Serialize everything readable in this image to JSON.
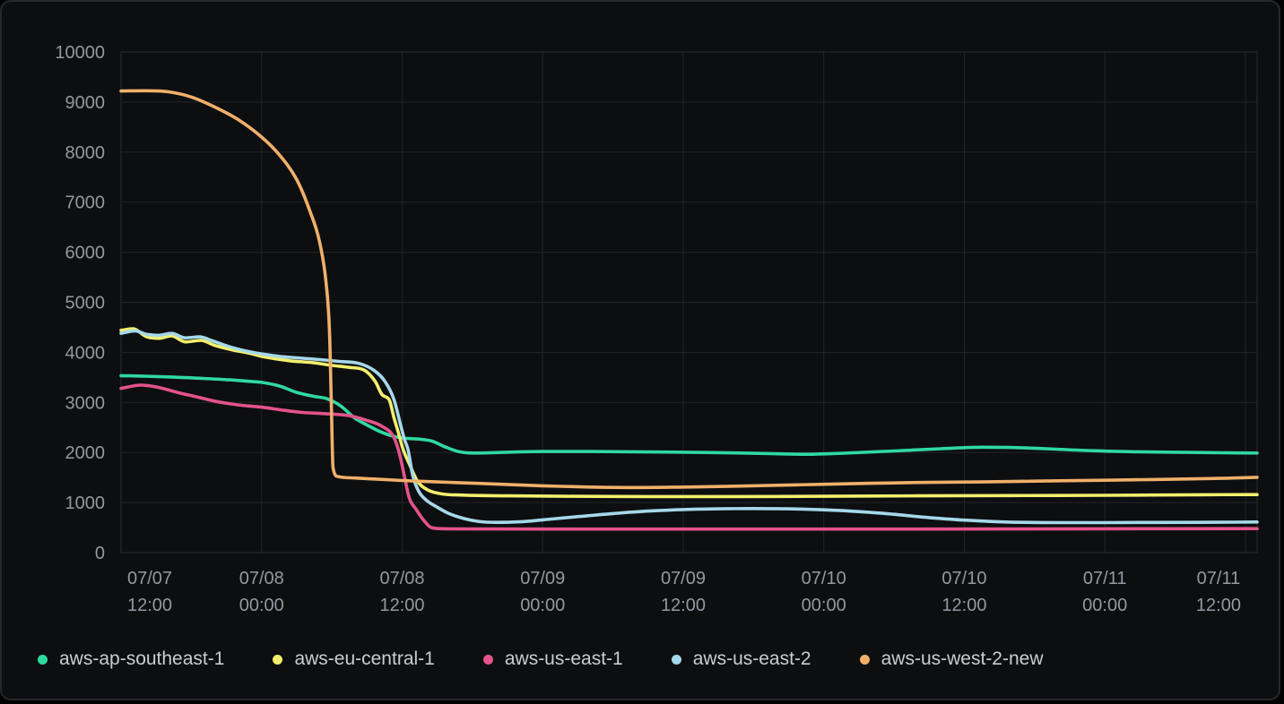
{
  "panel": {
    "background": "#0d0e10",
    "border_color": "#26282c",
    "grid_color": "#222529",
    "plot_border_color": "#2a2c30",
    "axis_text_color": "#95989f",
    "legend_text_color": "#c9ccd2"
  },
  "chart_data": {
    "type": "line",
    "title": "",
    "xlabel": "",
    "ylabel": "",
    "grid": true,
    "legend_position": "bottom",
    "ylim": [
      0,
      10000
    ],
    "y_ticks": [
      0,
      1000,
      2000,
      3000,
      4000,
      5000,
      6000,
      7000,
      8000,
      9000,
      10000
    ],
    "x_range_hours": [
      0,
      97
    ],
    "x_tick_hours": [
      0,
      12,
      24,
      36,
      48,
      60,
      72,
      84,
      96
    ],
    "x_tick_labels": [
      {
        "date": "07/07",
        "time": "12:00"
      },
      {
        "date": "07/08",
        "time": "00:00"
      },
      {
        "date": "07/08",
        "time": "12:00"
      },
      {
        "date": "07/09",
        "time": "00:00"
      },
      {
        "date": "07/09",
        "time": "12:00"
      },
      {
        "date": "07/10",
        "time": "00:00"
      },
      {
        "date": "07/10",
        "time": "12:00"
      },
      {
        "date": "07/11",
        "time": "00:00"
      },
      {
        "date": "07/11",
        "time": "12:00"
      }
    ],
    "series": [
      {
        "name": "aws-ap-southeast-1",
        "color": "#2fd9a0",
        "points": [
          [
            0,
            3535
          ],
          [
            2,
            3525
          ],
          [
            4,
            3510
          ],
          [
            7,
            3480
          ],
          [
            9,
            3455
          ],
          [
            11,
            3420
          ],
          [
            12,
            3400
          ],
          [
            13.5,
            3330
          ],
          [
            15,
            3200
          ],
          [
            16.5,
            3120
          ],
          [
            17.5,
            3080
          ],
          [
            18.7,
            2940
          ],
          [
            20,
            2680
          ],
          [
            21,
            2550
          ],
          [
            22,
            2430
          ],
          [
            23,
            2340
          ],
          [
            24,
            2290
          ],
          [
            25.3,
            2270
          ],
          [
            26.5,
            2230
          ],
          [
            27.7,
            2110
          ],
          [
            28.8,
            2020
          ],
          [
            30,
            1990
          ],
          [
            33,
            2005
          ],
          [
            36,
            2020
          ],
          [
            40,
            2020
          ],
          [
            45,
            2010
          ],
          [
            50,
            2000
          ],
          [
            55,
            1980
          ],
          [
            58.5,
            1965
          ],
          [
            62,
            1990
          ],
          [
            66,
            2030
          ],
          [
            70,
            2075
          ],
          [
            73.5,
            2105
          ],
          [
            76,
            2100
          ],
          [
            79,
            2075
          ],
          [
            83,
            2035
          ],
          [
            86.5,
            2015
          ],
          [
            90,
            2005
          ],
          [
            94,
            1995
          ],
          [
            97,
            1990
          ]
        ]
      },
      {
        "name": "aws-eu-central-1",
        "color": "#f3ef6d",
        "points": [
          [
            0,
            4440
          ],
          [
            1,
            4470
          ],
          [
            2.2,
            4310
          ],
          [
            3.2,
            4280
          ],
          [
            4.3,
            4330
          ],
          [
            5.5,
            4210
          ],
          [
            6.8,
            4240
          ],
          [
            8,
            4140
          ],
          [
            9.7,
            4040
          ],
          [
            11,
            3980
          ],
          [
            12,
            3920
          ],
          [
            13.5,
            3860
          ],
          [
            14.5,
            3830
          ],
          [
            16.5,
            3790
          ],
          [
            18,
            3740
          ],
          [
            19.5,
            3700
          ],
          [
            20.8,
            3640
          ],
          [
            21.7,
            3420
          ],
          [
            22.3,
            3150
          ],
          [
            22.9,
            3050
          ],
          [
            23.3,
            2700
          ],
          [
            23.7,
            2380
          ],
          [
            24.1,
            2050
          ],
          [
            24.6,
            1780
          ],
          [
            25.3,
            1430
          ],
          [
            26.2,
            1250
          ],
          [
            27.5,
            1170
          ],
          [
            29,
            1150
          ],
          [
            33,
            1135
          ],
          [
            38,
            1125
          ],
          [
            45,
            1120
          ],
          [
            52,
            1120
          ],
          [
            60,
            1125
          ],
          [
            68,
            1135
          ],
          [
            76,
            1140
          ],
          [
            84,
            1145
          ],
          [
            92,
            1155
          ],
          [
            97,
            1160
          ]
        ]
      },
      {
        "name": "aws-us-east-1",
        "color": "#e4538b",
        "points": [
          [
            0,
            3280
          ],
          [
            1.7,
            3345
          ],
          [
            3,
            3310
          ],
          [
            5,
            3190
          ],
          [
            6.5,
            3110
          ],
          [
            8.1,
            3020
          ],
          [
            10,
            2950
          ],
          [
            12,
            2905
          ],
          [
            14,
            2840
          ],
          [
            15.5,
            2800
          ],
          [
            17.5,
            2775
          ],
          [
            19.5,
            2735
          ],
          [
            21,
            2640
          ],
          [
            22.3,
            2520
          ],
          [
            23.3,
            2300
          ],
          [
            23.8,
            1950
          ],
          [
            24.2,
            1520
          ],
          [
            24.6,
            1100
          ],
          [
            25.2,
            860
          ],
          [
            25.9,
            630
          ],
          [
            26.5,
            500
          ],
          [
            27.5,
            478
          ],
          [
            32,
            473
          ],
          [
            45,
            470
          ],
          [
            60,
            470
          ],
          [
            75,
            473
          ],
          [
            90,
            477
          ],
          [
            97,
            480
          ]
        ]
      },
      {
        "name": "aws-us-east-2",
        "color": "#a5d8ea",
        "points": [
          [
            0,
            4380
          ],
          [
            1.2,
            4430
          ],
          [
            2.2,
            4360
          ],
          [
            3.2,
            4340
          ],
          [
            4.3,
            4380
          ],
          [
            5.5,
            4290
          ],
          [
            6.7,
            4310
          ],
          [
            7.8,
            4230
          ],
          [
            9.3,
            4110
          ],
          [
            11,
            4010
          ],
          [
            12,
            3970
          ],
          [
            13.5,
            3920
          ],
          [
            15,
            3890
          ],
          [
            17,
            3855
          ],
          [
            18.6,
            3820
          ],
          [
            20.3,
            3780
          ],
          [
            21.6,
            3640
          ],
          [
            22.5,
            3430
          ],
          [
            23.3,
            3060
          ],
          [
            23.9,
            2520
          ],
          [
            24.2,
            2260
          ],
          [
            24.5,
            2060
          ],
          [
            24.9,
            1550
          ],
          [
            25.4,
            1230
          ],
          [
            26,
            1060
          ],
          [
            26.9,
            920
          ],
          [
            28,
            780
          ],
          [
            29.3,
            680
          ],
          [
            30.5,
            625
          ],
          [
            32,
            605
          ],
          [
            34,
            615
          ],
          [
            36,
            655
          ],
          [
            39,
            720
          ],
          [
            42,
            780
          ],
          [
            45,
            830
          ],
          [
            48,
            860
          ],
          [
            51,
            875
          ],
          [
            54,
            880
          ],
          [
            57,
            875
          ],
          [
            60,
            855
          ],
          [
            63,
            820
          ],
          [
            66,
            765
          ],
          [
            69,
            700
          ],
          [
            72,
            650
          ],
          [
            74.5,
            620
          ],
          [
            77,
            605
          ],
          [
            80,
            600
          ],
          [
            84,
            600
          ],
          [
            88,
            602
          ],
          [
            92,
            605
          ],
          [
            95,
            608
          ],
          [
            97,
            612
          ]
        ]
      },
      {
        "name": "aws-us-west-2-new",
        "color": "#f0b069",
        "points": [
          [
            0,
            9220
          ],
          [
            2,
            9225
          ],
          [
            4,
            9205
          ],
          [
            6,
            9100
          ],
          [
            8,
            8900
          ],
          [
            10,
            8650
          ],
          [
            12,
            8300
          ],
          [
            13.5,
            7950
          ],
          [
            15,
            7450
          ],
          [
            16,
            6900
          ],
          [
            17,
            6150
          ],
          [
            17.5,
            5400
          ],
          [
            17.8,
            4400
          ],
          [
            17.95,
            3000
          ],
          [
            18.1,
            1700
          ],
          [
            18.5,
            1520
          ],
          [
            20,
            1490
          ],
          [
            22,
            1465
          ],
          [
            24,
            1440
          ],
          [
            26,
            1420
          ],
          [
            28,
            1405
          ],
          [
            32,
            1370
          ],
          [
            36,
            1335
          ],
          [
            40,
            1310
          ],
          [
            44,
            1300
          ],
          [
            48,
            1310
          ],
          [
            52,
            1325
          ],
          [
            56,
            1345
          ],
          [
            60,
            1365
          ],
          [
            64,
            1385
          ],
          [
            68,
            1400
          ],
          [
            72,
            1410
          ],
          [
            76,
            1420
          ],
          [
            80,
            1435
          ],
          [
            84,
            1445
          ],
          [
            88,
            1460
          ],
          [
            92,
            1475
          ],
          [
            95,
            1490
          ],
          [
            97,
            1505
          ]
        ]
      }
    ]
  }
}
